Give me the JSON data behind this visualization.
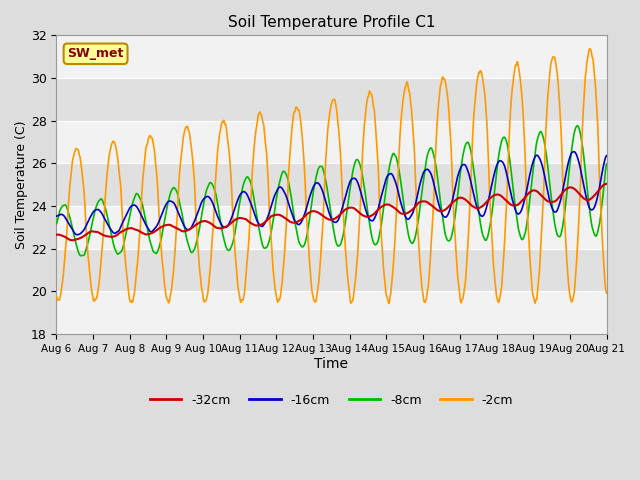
{
  "title": "Soil Temperature Profile C1",
  "xlabel": "Time",
  "ylabel": "Soil Temperature (C)",
  "ylim": [
    18,
    32
  ],
  "y_ticks": [
    18,
    20,
    22,
    24,
    26,
    28,
    30,
    32
  ],
  "x_tick_labels": [
    "Aug 6",
    "Aug 7",
    "Aug 8",
    "Aug 9",
    "Aug 10",
    "Aug 11",
    "Aug 12",
    "Aug 13",
    "Aug 14",
    "Aug 15",
    "Aug 16",
    "Aug 17",
    "Aug 18",
    "Aug 19",
    "Aug 20",
    "Aug 21"
  ],
  "legend_label_32": "-32cm",
  "legend_label_16": "-16cm",
  "legend_label_8": "-8cm",
  "legend_label_2": "-2cm",
  "color_32": "#cc0000",
  "color_16": "#0000cc",
  "color_8": "#00bb00",
  "color_2": "#ff9900",
  "annotation_text": "SW_met",
  "annotation_bg": "#ffff99",
  "annotation_border": "#bb8800",
  "annotation_text_color": "#880000",
  "fig_bg_color": "#dddddd",
  "plot_bg_light": "#f2f2f2",
  "plot_bg_dark": "#e0e0e0",
  "grid_color": "#ffffff",
  "n_points": 1440
}
